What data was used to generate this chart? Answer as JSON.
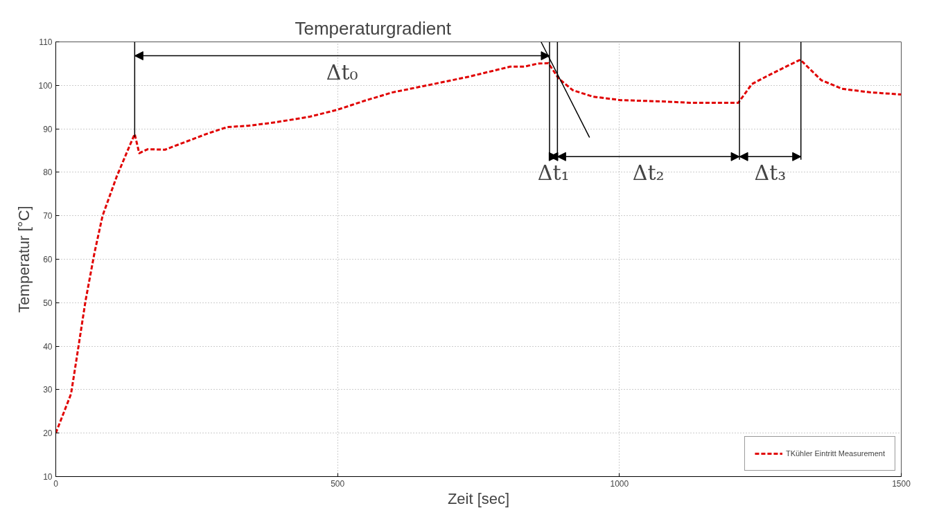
{
  "chart_data": {
    "type": "line",
    "xlabel": "Zeit [sec]",
    "ylabel": "Temperatur [°C]",
    "xlim": [
      0,
      1500
    ],
    "ylim": [
      10,
      110
    ],
    "xticks": [
      0,
      500,
      1000,
      1500
    ],
    "yticks": [
      10,
      20,
      30,
      40,
      50,
      60,
      70,
      80,
      90,
      100,
      110
    ],
    "grid": true,
    "legend": "bottom right",
    "line_style": "dashed",
    "series": [
      {
        "name": "TKühler Eintritt Measurement",
        "color": "#e00000",
        "x": [
          0,
          27,
          34,
          53,
          69,
          83,
          108,
          132,
          140,
          148,
          163,
          194,
          218,
          267,
          304,
          341,
          390,
          451,
          500,
          549,
          598,
          659,
          733,
          806,
          831,
          855,
          874,
          892,
          917,
          953,
          1002,
          1076,
          1125,
          1211,
          1235,
          1260,
          1297,
          1321,
          1358,
          1395,
          1444,
          1500
        ],
        "values": [
          20,
          29,
          34.7,
          50.6,
          61.7,
          70,
          79,
          86.4,
          88.8,
          84.4,
          85.3,
          85.2,
          86.4,
          88.8,
          90.4,
          90.7,
          91.5,
          92.8,
          94.4,
          96.5,
          98.4,
          100,
          102,
          104.3,
          104.3,
          105,
          105.1,
          101.6,
          98.9,
          97.4,
          96.6,
          96.3,
          96,
          96,
          100.3,
          102,
          104.4,
          105.9,
          101.2,
          99.2,
          98.4,
          97.9
        ]
      },
      {
        "type": "line",
        "line_style": "solid",
        "color": "#000000",
        "x": [
          861,
          947
        ],
        "values": [
          110,
          88
        ]
      }
    ],
    "ref_lines": [
      {
        "axis": "x",
        "value": 140
      },
      {
        "axis": "x",
        "value": 876
      },
      {
        "axis": "x",
        "value": 890
      },
      {
        "axis": "x",
        "value": 1213
      },
      {
        "axis": "x",
        "value": 1322
      }
    ],
    "annotations": [
      "Temperaturgradient",
      "Δt₀",
      "Δt₁",
      "Δt₂",
      {
        "text": "Δt₃",
        "x": 1213,
        "y": 96
      }
    ]
  }
}
